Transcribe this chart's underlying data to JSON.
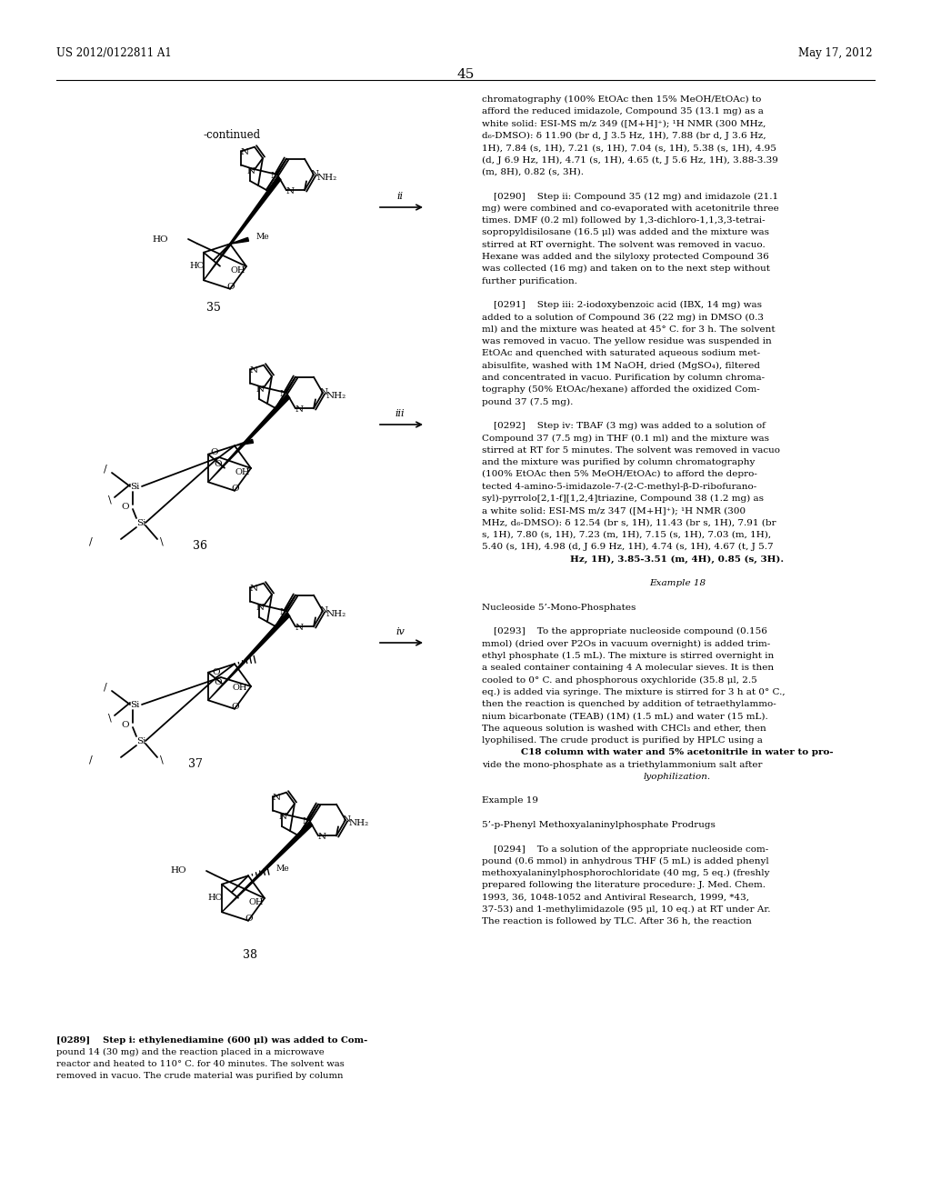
{
  "page_header_left": "US 2012/0122811 A1",
  "page_header_right": "May 17, 2012",
  "page_number": "45",
  "background_color": "#ffffff",
  "text_color": "#000000",
  "right_col_lines": [
    "chromatography (100% EtOAc then 15% MeOH/EtOAc) to",
    "afford the reduced imidazole, Compound 35 (13.1 mg) as a",
    "white solid: ESI-MS m/z 349 ([M+H]⁺); ¹H NMR (300 MHz,",
    "d₆-DMSO): δ 11.90 (br d, J 3.5 Hz, 1H), 7.88 (br d, J 3.6 Hz,",
    "1H), 7.84 (s, 1H), 7.21 (s, 1H), 7.04 (s, 1H), 5.38 (s, 1H), 4.95",
    "(d, J 6.9 Hz, 1H), 4.71 (s, 1H), 4.65 (t, J 5.6 Hz, 1H), 3.88-3.39",
    "(m, 8H), 0.82 (s, 3H).",
    "",
    "    [0290]    Step ii: Compound 35 (12 mg) and imidazole (21.1",
    "mg) were combined and co-evaporated with acetonitrile three",
    "times. DMF (0.2 ml) followed by 1,3-dichloro-1,1,3,3-tetrai-",
    "sopropyldisilosane (16.5 μl) was added and the mixture was",
    "stirred at RT overnight. The solvent was removed in vacuo.",
    "Hexane was added and the silyloxy protected Compound 36",
    "was collected (16 mg) and taken on to the next step without",
    "further purification.",
    "",
    "    [0291]    Step iii: 2-iodoxybenzoic acid (IBX, 14 mg) was",
    "added to a solution of Compound 36 (22 mg) in DMSO (0.3",
    "ml) and the mixture was heated at 45° C. for 3 h. The solvent",
    "was removed in vacuo. The yellow residue was suspended in",
    "EtOAc and quenched with saturated aqueous sodium met-",
    "abisulfite, washed with 1M NaOH, dried (MgSO₄), filtered",
    "and concentrated in vacuo. Purification by column chroma-",
    "tography (50% EtOAc/hexane) afforded the oxidized Com-",
    "pound 37 (7.5 mg).",
    "",
    "    [0292]    Step iv: TBAF (3 mg) was added to a solution of",
    "Compound 37 (7.5 mg) in THF (0.1 ml) and the mixture was",
    "stirred at RT for 5 minutes. The solvent was removed in vacuo",
    "and the mixture was purified by column chromatography",
    "(100% EtOAc then 5% MeOH/EtOAc) to afford the depro-",
    "tected 4-amino-5-imidazole-7-(2-C-methyl-β-D-ribofurano-",
    "syl)-pyrrolo[2,1-f][1,2,4]triazine, Compound 38 (1.2 mg) as",
    "a white solid: ESI-MS m/z 347 ([M+H]⁺); ¹H NMR (300",
    "MHz, d₆-DMSO): δ 12.54 (br s, 1H), 11.43 (br s, 1H), 7.91 (br",
    "s, 1H), 7.80 (s, 1H), 7.23 (m, 1H), 7.15 (s, 1H), 7.03 (m, 1H),",
    "5.40 (s, 1H), 4.98 (d, J 6.9 Hz, 1H), 4.74 (s, 1H), 4.67 (t, J 5.7",
    "Hz, 1H), 3.85-3.51 (m, 4H), 0.85 (s, 3H).",
    "",
    "Example 18",
    "",
    "Nucleoside 5’-Mono-Phosphates",
    "",
    "    [0293]    To the appropriate nucleoside compound (0.156",
    "mmol) (dried over P2Os in vacuum overnight) is added trim-",
    "ethyl phosphate (1.5 mL). The mixture is stirred overnight in",
    "a sealed container containing 4 A molecular sieves. It is then",
    "cooled to 0° C. and phosphorous oxychloride (35.8 μl, 2.5",
    "eq.) is added via syringe. The mixture is stirred for 3 h at 0° C.,",
    "then the reaction is quenched by addition of tetraethylammo-",
    "nium bicarbonate (TEAB) (1M) (1.5 mL) and water (15 mL).",
    "The aqueous solution is washed with CHCl₃ and ether, then",
    "lyophilised. The crude product is purified by HPLC using a",
    "C18 column with water and 5% acetonitrile in water to pro-",
    "vide the mono-phosphate as a triethylammonium salt after",
    "lyophilization.",
    "",
    "Example 19",
    "",
    "5’-p-Phenyl Methoxyalaninylphosphate Prodrugs",
    "",
    "    [0294]    To a solution of the appropriate nucleoside com-",
    "pound (0.6 mmol) in anhydrous THF (5 mL) is added phenyl",
    "methoxyalaninylphosphorochloridate (40 mg, 5 eq.) (freshly",
    "prepared following the literature procedure: J. Med. Chem.",
    "1993, 36, 1048-1052 and Antiviral Research, 1999, *43,",
    "37-53) and 1-methylimidazole (95 μl, 10 eq.) at RT under Ar.",
    "The reaction is followed by TLC. After 36 h, the reaction"
  ],
  "caption_lines": [
    "[0289]    Step i: ethylenediamine (600 μl) was added to Com-",
    "pound 14 (30 mg) and the reaction placed in a microwave",
    "reactor and heated to 110° C. for 40 minutes. The solvent was",
    "removed in vacuo. The crude material was purified by column"
  ],
  "example18_line": 38,
  "example19_line": 54,
  "nucleoside_line": 40,
  "prodrugs_line": 56
}
